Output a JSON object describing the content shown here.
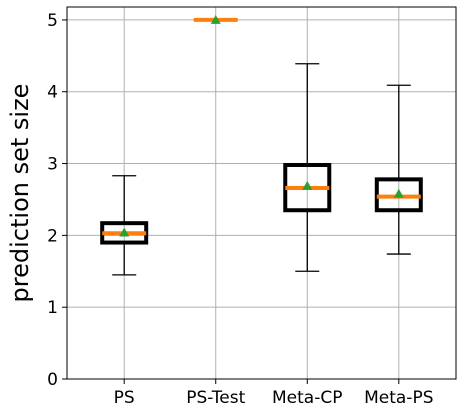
{
  "chart_data": {
    "type": "box",
    "title": "",
    "xlabel": "",
    "ylabel": "prediction set size",
    "ylim": [
      0,
      5.18
    ],
    "yticks": [
      "0",
      "1",
      "2",
      "3",
      "4",
      "5"
    ],
    "grid": true,
    "legend": "none",
    "categories": [
      "PS",
      "PS-Test",
      "Meta-CP",
      "Meta-PS"
    ],
    "boxes": [
      {
        "whisker_low": 1.45,
        "q1": 1.9,
        "median": 2.03,
        "q3": 2.17,
        "whisker_high": 2.83,
        "mean": 2.04
      },
      {
        "whisker_low": 5.0,
        "q1": 5.0,
        "median": 5.0,
        "q3": 5.0,
        "whisker_high": 5.0,
        "mean": 5.0
      },
      {
        "whisker_low": 1.5,
        "q1": 2.35,
        "median": 2.66,
        "q3": 2.98,
        "whisker_high": 4.39,
        "mean": 2.69
      },
      {
        "whisker_low": 1.74,
        "q1": 2.35,
        "median": 2.54,
        "q3": 2.78,
        "whisker_high": 4.09,
        "mean": 2.58
      }
    ],
    "colors": {
      "box": "#000000",
      "median": "#ff7f0e",
      "mean": "#2ca02c",
      "grid": "#b0b0b0"
    }
  }
}
